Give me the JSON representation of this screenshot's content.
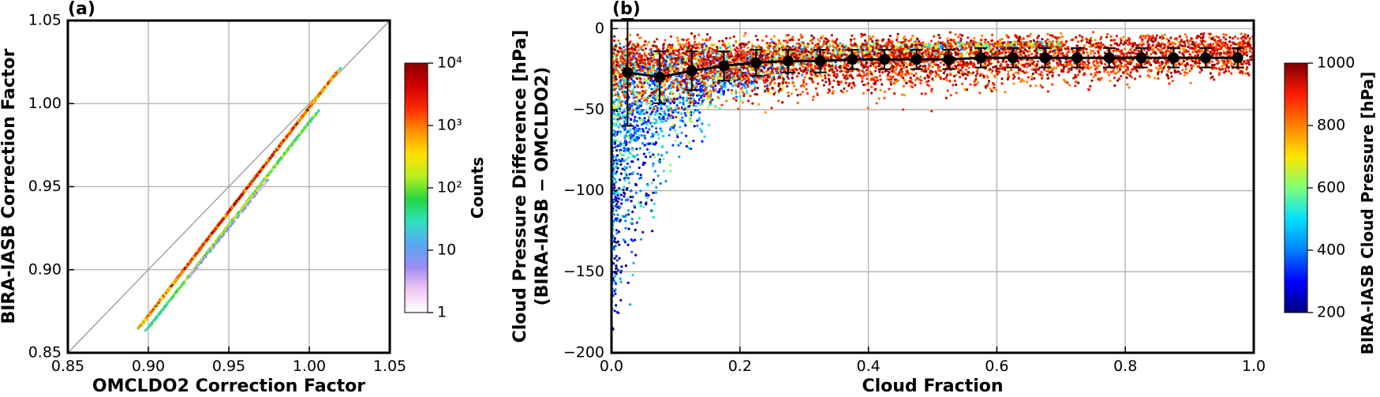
{
  "chart_data": [
    {
      "panel_label": "(a)",
      "type": "heatmap",
      "xlabel": "OMCLDO2 Correction Factor",
      "ylabel": "BIRA-IASB Correction Factor",
      "xlim": [
        0.85,
        1.05
      ],
      "ylim": [
        0.85,
        1.05
      ],
      "xticks": [
        "0.85",
        "0.90",
        "0.95",
        "1.00",
        "1.05"
      ],
      "yticks": [
        "0.85",
        "0.90",
        "0.95",
        "1.00",
        "1.05"
      ],
      "grid": true,
      "reference_line": "1:1",
      "colorbar": {
        "label": "Counts",
        "scale": "log",
        "range": [
          1,
          10000
        ],
        "ticks": [
          "1",
          "10",
          "10²",
          "10³",
          "10⁴"
        ],
        "colors": [
          "#ffffff",
          "#f4c8f4",
          "#9b8cf0",
          "#5aa8f5",
          "#2fe0c0",
          "#25d640",
          "#b8f020",
          "#ffe000",
          "#ff9000",
          "#ff2a00",
          "#d00000",
          "#8b0000"
        ]
      },
      "bands": [
        {
          "name": "main",
          "x_start": 0.895,
          "y_start": 0.866,
          "x_end": 1.017,
          "y_end": 1.019
        },
        {
          "name": "secondary",
          "x_start": 0.9,
          "y_start": 0.865,
          "x_end": 1.005,
          "y_end": 0.995
        },
        {
          "name": "tail",
          "x_start": 0.925,
          "y_start": 0.895,
          "x_end": 0.975,
          "y_end": 0.955
        }
      ]
    },
    {
      "panel_label": "(b)",
      "type": "scatter",
      "xlabel": "Cloud Fraction",
      "ylabel_line1": "Cloud Pressure Difference [hPa]",
      "ylabel_line2": "(BIRA-IASB − OMCLDO2)",
      "xlim": [
        0.0,
        1.0
      ],
      "ylim": [
        -200,
        5
      ],
      "xticks": [
        "0.0",
        "0.2",
        "0.4",
        "0.6",
        "0.8",
        "1.0"
      ],
      "yticks": [
        "0",
        "−50",
        "−100",
        "−150",
        "−200"
      ],
      "grid": true,
      "colorbar": {
        "label": "BIRA-IASB Cloud Pressure [hPa]",
        "range": [
          200,
          1000
        ],
        "ticks": [
          "200",
          "400",
          "600",
          "800",
          "1000"
        ],
        "colors": [
          "#00007f",
          "#0000ff",
          "#0080ff",
          "#00e0ff",
          "#7dff7a",
          "#ffe600",
          "#ff8000",
          "#ff1a00",
          "#7f0000"
        ]
      },
      "binned_mean": {
        "x": [
          0.025,
          0.075,
          0.125,
          0.175,
          0.225,
          0.275,
          0.325,
          0.375,
          0.425,
          0.475,
          0.525,
          0.575,
          0.625,
          0.675,
          0.725,
          0.775,
          0.825,
          0.875,
          0.925,
          0.975
        ],
        "y": [
          -27,
          -30,
          -26,
          -23,
          -21,
          -20,
          -20,
          -19,
          -19,
          -19,
          -19,
          -18,
          -18,
          -18,
          -18,
          -18,
          -18,
          -18,
          -18,
          -18
        ],
        "err": [
          33,
          16,
          12,
          9,
          8,
          7,
          7,
          6,
          6,
          6,
          6,
          6,
          6,
          6,
          6,
          6,
          6,
          6,
          6,
          6
        ]
      }
    }
  ]
}
